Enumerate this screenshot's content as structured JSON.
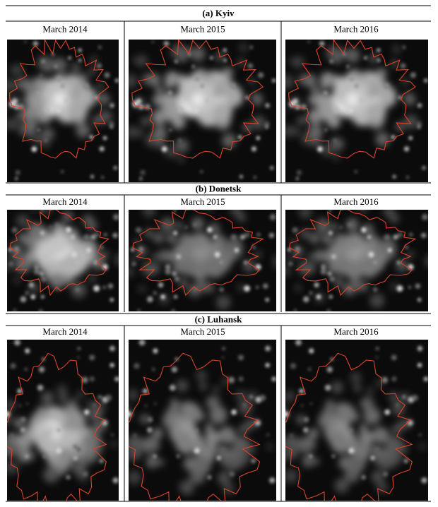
{
  "panels": [
    {
      "title": "(a) Kyiv",
      "columns": [
        "March 2014",
        "March 2015",
        "March 2016"
      ]
    },
    {
      "title": "(b) Donetsk",
      "columns": [
        "March 2014",
        "March 2015",
        "March 2016"
      ]
    },
    {
      "title": "(c) Luhansk",
      "columns": [
        "March 2014",
        "March 2015",
        "March 2016"
      ]
    }
  ]
}
